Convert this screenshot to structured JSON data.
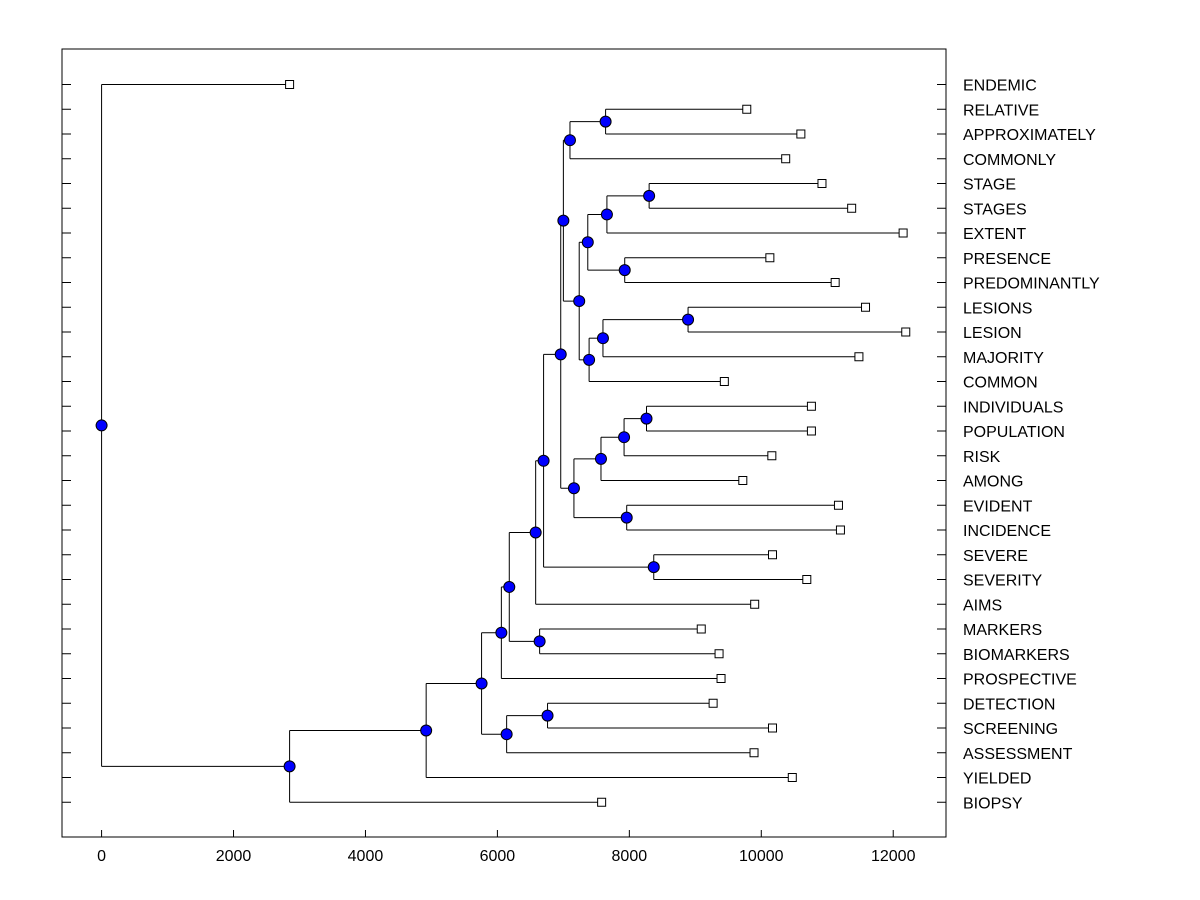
{
  "chart_data": {
    "type": "dendrogram",
    "title": "",
    "xlabel": "",
    "ylabel": "",
    "xlim": [
      -600,
      12800
    ],
    "x_ticks": [
      0,
      2000,
      4000,
      6000,
      8000,
      10000,
      12000
    ],
    "x_tick_labels": [
      "0",
      "2000",
      "4000",
      "6000",
      "8000",
      "10000",
      "12000"
    ],
    "grid": false,
    "node_color": "#0000ff",
    "line_color": "#000000",
    "leaves": [
      {
        "label": "ENDEMIC",
        "x": 2850
      },
      {
        "label": "RELATIVE",
        "x": 9780
      },
      {
        "label": "APPROXIMATELY",
        "x": 10600
      },
      {
        "label": "COMMONLY",
        "x": 10370
      },
      {
        "label": "STAGE",
        "x": 10920
      },
      {
        "label": "STAGES",
        "x": 11370
      },
      {
        "label": "EXTENT",
        "x": 12150
      },
      {
        "label": "PRESENCE",
        "x": 10130
      },
      {
        "label": "PREDOMINANTLY",
        "x": 11120
      },
      {
        "label": "LESIONS",
        "x": 11580
      },
      {
        "label": "LESION",
        "x": 12190
      },
      {
        "label": "MAJORITY",
        "x": 11480
      },
      {
        "label": "COMMON",
        "x": 9440
      },
      {
        "label": "INDIVIDUALS",
        "x": 10760
      },
      {
        "label": "POPULATION",
        "x": 10760
      },
      {
        "label": "RISK",
        "x": 10160
      },
      {
        "label": "AMONG",
        "x": 9720
      },
      {
        "label": "EVIDENT",
        "x": 11170
      },
      {
        "label": "INCIDENCE",
        "x": 11200
      },
      {
        "label": "SEVERE",
        "x": 10170
      },
      {
        "label": "SEVERITY",
        "x": 10690
      },
      {
        "label": "AIMS",
        "x": 9900
      },
      {
        "label": "MARKERS",
        "x": 9090
      },
      {
        "label": "BIOMARKERS",
        "x": 9360
      },
      {
        "label": "PROSPECTIVE",
        "x": 9390
      },
      {
        "label": "DETECTION",
        "x": 9270
      },
      {
        "label": "SCREENING",
        "x": 10170
      },
      {
        "label": "ASSESSMENT",
        "x": 9890
      },
      {
        "label": "YIELDED",
        "x": 10470
      },
      {
        "label": "BIOPSY",
        "x": 7580
      }
    ],
    "merges": [
      {
        "id": "M1",
        "x": 7640,
        "children": [
          "RELATIVE",
          "APPROXIMATELY"
        ]
      },
      {
        "id": "M2",
        "x": 7100,
        "children": [
          "M1",
          "COMMONLY"
        ]
      },
      {
        "id": "M3",
        "x": 8300,
        "children": [
          "STAGE",
          "STAGES"
        ]
      },
      {
        "id": "M4",
        "x": 7660,
        "children": [
          "M3",
          "EXTENT"
        ]
      },
      {
        "id": "M5",
        "x": 7930,
        "children": [
          "PRESENCE",
          "PREDOMINANTLY"
        ]
      },
      {
        "id": "M6",
        "x": 7370,
        "children": [
          "M4",
          "M5"
        ]
      },
      {
        "id": "M7",
        "x": 8890,
        "children": [
          "LESIONS",
          "LESION"
        ]
      },
      {
        "id": "M8",
        "x": 7600,
        "children": [
          "M7",
          "MAJORITY"
        ]
      },
      {
        "id": "M9",
        "x": 7390,
        "children": [
          "M8",
          "COMMON"
        ]
      },
      {
        "id": "M10",
        "x": 7240,
        "children": [
          "M6",
          "M9"
        ]
      },
      {
        "id": "M11",
        "x": 7000,
        "children": [
          "M2",
          "M10"
        ]
      },
      {
        "id": "M12",
        "x": 8260,
        "children": [
          "INDIVIDUALS",
          "POPULATION"
        ]
      },
      {
        "id": "M13",
        "x": 7920,
        "children": [
          "M12",
          "RISK"
        ]
      },
      {
        "id": "M14",
        "x": 7570,
        "children": [
          "M13",
          "AMONG"
        ]
      },
      {
        "id": "M15",
        "x": 7960,
        "children": [
          "EVIDENT",
          "INCIDENCE"
        ]
      },
      {
        "id": "M16",
        "x": 7160,
        "children": [
          "M14",
          "M15"
        ]
      },
      {
        "id": "M17",
        "x": 6960,
        "children": [
          "M11",
          "M16"
        ]
      },
      {
        "id": "M18",
        "x": 8370,
        "children": [
          "SEVERE",
          "SEVERITY"
        ]
      },
      {
        "id": "M19",
        "x": 6700,
        "children": [
          "M17",
          "M18"
        ]
      },
      {
        "id": "M20",
        "x": 6580,
        "children": [
          "M19",
          "AIMS"
        ]
      },
      {
        "id": "M21",
        "x": 6640,
        "children": [
          "MARKERS",
          "BIOMARKERS"
        ]
      },
      {
        "id": "M22",
        "x": 6180,
        "children": [
          "M20",
          "M21"
        ]
      },
      {
        "id": "M23",
        "x": 6060,
        "children": [
          "M22",
          "PROSPECTIVE"
        ]
      },
      {
        "id": "M24",
        "x": 6760,
        "children": [
          "DETECTION",
          "SCREENING"
        ]
      },
      {
        "id": "M25",
        "x": 6140,
        "children": [
          "M24",
          "ASSESSMENT"
        ]
      },
      {
        "id": "M26",
        "x": 5760,
        "children": [
          "M23",
          "M25"
        ]
      },
      {
        "id": "M27",
        "x": 4920,
        "children": [
          "M26",
          "YIELDED"
        ]
      },
      {
        "id": "M28",
        "x": 2850,
        "children": [
          "M27",
          "BIOPSY"
        ]
      },
      {
        "id": "M29",
        "x": 0,
        "children": [
          "ENDEMIC",
          "M28"
        ]
      }
    ]
  }
}
